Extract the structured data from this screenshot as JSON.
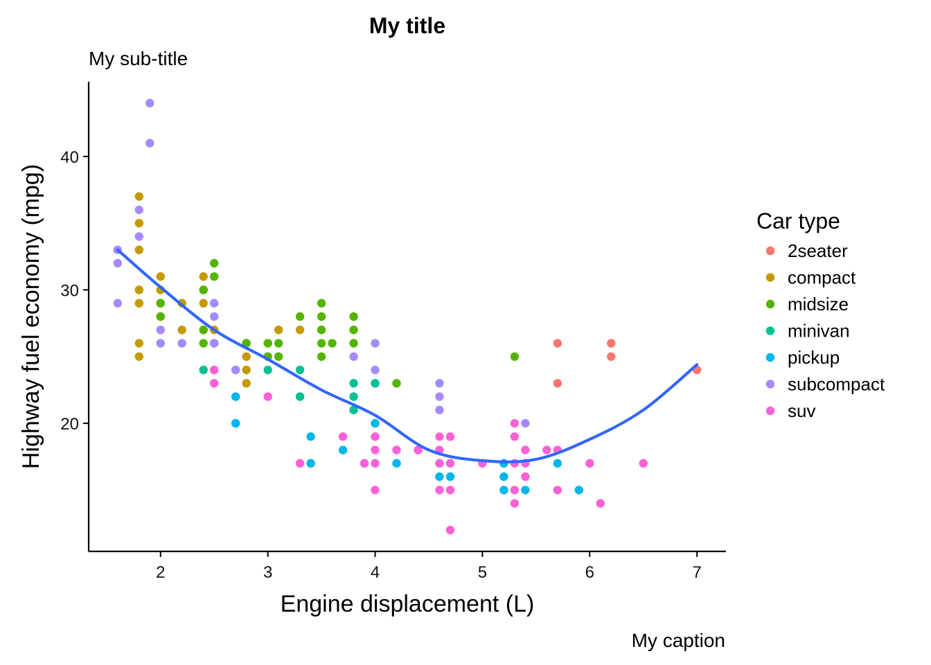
{
  "chart_data": {
    "type": "scatter",
    "title": "My title",
    "subtitle": "My sub-title",
    "caption": "My caption",
    "xlabel": "Engine displacement (L)",
    "ylabel": "Highway fuel economy (mpg)",
    "xlim": [
      1.33,
      7.27
    ],
    "ylim": [
      10.4,
      45.6
    ],
    "xticks": [
      2,
      3,
      4,
      5,
      6,
      7
    ],
    "yticks": [
      20,
      30,
      40
    ],
    "grid": false,
    "legend": {
      "title": "Car type",
      "placement": "right"
    },
    "series": [
      {
        "name": "2seater",
        "color": "#F8766D",
        "points": [
          [
            5.7,
            26
          ],
          [
            5.7,
            23
          ],
          [
            6.2,
            26
          ],
          [
            6.2,
            25
          ],
          [
            7.0,
            24
          ]
        ]
      },
      {
        "name": "compact",
        "color": "#C49A00",
        "points": [
          [
            1.8,
            29
          ],
          [
            1.8,
            29
          ],
          [
            2.0,
            31
          ],
          [
            2.0,
            30
          ],
          [
            2.8,
            26
          ],
          [
            2.8,
            26
          ],
          [
            3.1,
            27
          ],
          [
            1.8,
            26
          ],
          [
            1.8,
            25
          ],
          [
            1.8,
            33
          ],
          [
            1.8,
            35
          ],
          [
            1.8,
            37
          ],
          [
            1.8,
            30
          ],
          [
            2.0,
            29
          ],
          [
            2.0,
            28
          ],
          [
            2.0,
            26
          ],
          [
            2.2,
            27
          ],
          [
            2.2,
            29
          ],
          [
            2.4,
            31
          ],
          [
            2.4,
            30
          ],
          [
            2.4,
            27
          ],
          [
            2.4,
            29
          ],
          [
            2.5,
            27
          ],
          [
            2.5,
            26
          ],
          [
            2.8,
            25
          ],
          [
            2.8,
            24
          ],
          [
            2.8,
            23
          ],
          [
            3.0,
            26
          ],
          [
            3.3,
            27
          ],
          [
            1.8,
            30
          ]
        ]
      },
      {
        "name": "midsize",
        "color": "#53B400",
        "points": [
          [
            2.4,
            27
          ],
          [
            2.4,
            30
          ],
          [
            2.5,
            31
          ],
          [
            2.5,
            32
          ],
          [
            2.0,
            29
          ],
          [
            2.0,
            28
          ],
          [
            2.4,
            26
          ],
          [
            2.5,
            26
          ],
          [
            3.0,
            26
          ],
          [
            3.0,
            25
          ],
          [
            3.1,
            26
          ],
          [
            3.1,
            25
          ],
          [
            2.8,
            26
          ],
          [
            3.3,
            28
          ],
          [
            3.5,
            29
          ],
          [
            3.5,
            28
          ],
          [
            3.5,
            27
          ],
          [
            3.5,
            26
          ],
          [
            3.5,
            25
          ],
          [
            3.6,
            26
          ],
          [
            3.8,
            28
          ],
          [
            3.8,
            27
          ],
          [
            3.8,
            26
          ],
          [
            4.2,
            23
          ],
          [
            5.3,
            25
          ]
        ]
      },
      {
        "name": "minivan",
        "color": "#00C094",
        "points": [
          [
            2.4,
            24
          ],
          [
            3.0,
            24
          ],
          [
            3.3,
            24
          ],
          [
            3.3,
            22
          ],
          [
            3.8,
            23
          ],
          [
            3.8,
            22
          ],
          [
            3.8,
            21
          ],
          [
            4.0,
            23
          ],
          [
            2.7,
            24
          ],
          [
            2.7,
            20
          ]
        ]
      },
      {
        "name": "pickup",
        "color": "#00B6EB",
        "points": [
          [
            2.7,
            22
          ],
          [
            2.7,
            20
          ],
          [
            3.4,
            19
          ],
          [
            3.4,
            17
          ],
          [
            3.7,
            18
          ],
          [
            3.9,
            17
          ],
          [
            4.0,
            20
          ],
          [
            4.2,
            17
          ],
          [
            4.6,
            17
          ],
          [
            4.6,
            16
          ],
          [
            4.7,
            17
          ],
          [
            4.7,
            16
          ],
          [
            5.2,
            17
          ],
          [
            5.2,
            16
          ],
          [
            5.2,
            15
          ],
          [
            5.4,
            15
          ],
          [
            5.7,
            17
          ],
          [
            5.9,
            15
          ]
        ]
      },
      {
        "name": "subcompact",
        "color": "#A58AFF",
        "points": [
          [
            1.6,
            33
          ],
          [
            1.6,
            32
          ],
          [
            1.6,
            29
          ],
          [
            1.8,
            34
          ],
          [
            1.8,
            36
          ],
          [
            1.9,
            44
          ],
          [
            1.9,
            41
          ],
          [
            2.0,
            27
          ],
          [
            2.0,
            26
          ],
          [
            2.2,
            26
          ],
          [
            2.5,
            29
          ],
          [
            2.5,
            28
          ],
          [
            2.5,
            26
          ],
          [
            2.7,
            24
          ],
          [
            3.8,
            25
          ],
          [
            4.0,
            26
          ],
          [
            4.0,
            24
          ],
          [
            4.6,
            23
          ],
          [
            4.6,
            22
          ],
          [
            4.6,
            21
          ],
          [
            5.4,
            20
          ]
        ]
      },
      {
        "name": "suv",
        "color": "#FB61D7",
        "points": [
          [
            2.5,
            24
          ],
          [
            2.5,
            23
          ],
          [
            3.0,
            22
          ],
          [
            3.3,
            17
          ],
          [
            3.7,
            19
          ],
          [
            3.9,
            17
          ],
          [
            4.0,
            19
          ],
          [
            4.0,
            18
          ],
          [
            4.0,
            17
          ],
          [
            4.0,
            15
          ],
          [
            4.2,
            18
          ],
          [
            4.4,
            18
          ],
          [
            4.6,
            19
          ],
          [
            4.6,
            18
          ],
          [
            4.6,
            17
          ],
          [
            4.6,
            15
          ],
          [
            4.7,
            19
          ],
          [
            4.7,
            17
          ],
          [
            4.7,
            15
          ],
          [
            4.7,
            12
          ],
          [
            5.0,
            17
          ],
          [
            5.3,
            20
          ],
          [
            5.3,
            19
          ],
          [
            5.3,
            17
          ],
          [
            5.3,
            15
          ],
          [
            5.3,
            14
          ],
          [
            5.4,
            18
          ],
          [
            5.4,
            17
          ],
          [
            5.4,
            16
          ],
          [
            5.6,
            18
          ],
          [
            5.7,
            18
          ],
          [
            5.7,
            15
          ],
          [
            6.0,
            17
          ],
          [
            6.1,
            14
          ],
          [
            6.5,
            17
          ]
        ]
      }
    ],
    "smooth": {
      "name": "smooth",
      "color": "#3366FF",
      "points": [
        [
          1.6,
          33.0
        ],
        [
          2.0,
          30.2
        ],
        [
          2.5,
          27.0
        ],
        [
          3.0,
          24.8
        ],
        [
          3.5,
          22.5
        ],
        [
          4.0,
          20.6
        ],
        [
          4.5,
          18.0
        ],
        [
          5.0,
          17.2
        ],
        [
          5.5,
          17.3
        ],
        [
          6.0,
          18.8
        ],
        [
          6.5,
          21.0
        ],
        [
          7.0,
          24.4
        ]
      ]
    }
  }
}
